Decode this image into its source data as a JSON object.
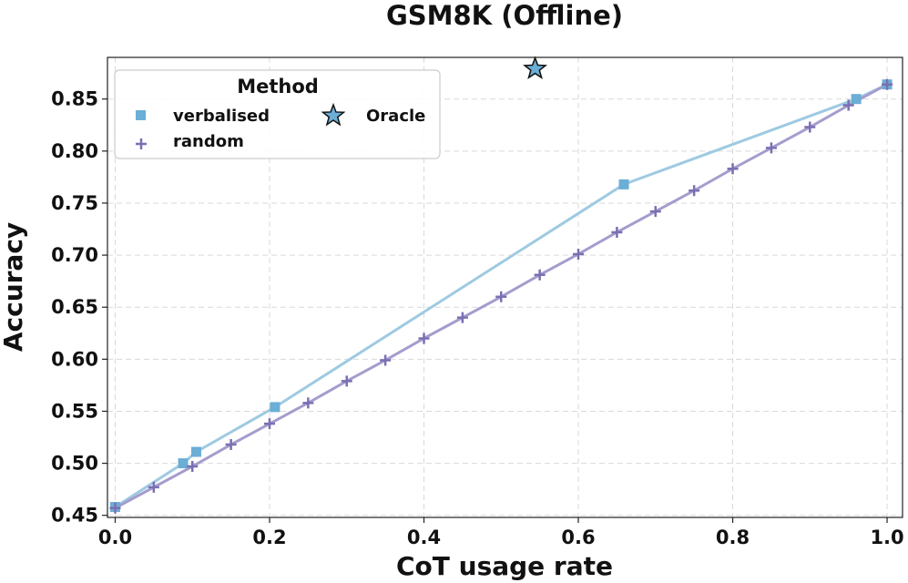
{
  "chart_data": {
    "type": "line",
    "title": "GSM8K (Offline)",
    "xlabel": "CoT usage rate",
    "ylabel": "Accuracy",
    "xlim": [
      -0.01,
      1.02
    ],
    "ylim": [
      0.448,
      0.89
    ],
    "xticks": [
      0.0,
      0.2,
      0.4,
      0.6,
      0.8,
      1.0
    ],
    "xtick_labels": [
      "0.0",
      "0.2",
      "0.4",
      "0.6",
      "0.8",
      "1.0"
    ],
    "yticks": [
      0.45,
      0.5,
      0.55,
      0.6,
      0.65,
      0.7,
      0.75,
      0.8,
      0.85
    ],
    "ytick_labels": [
      "0.45",
      "0.50",
      "0.55",
      "0.60",
      "0.65",
      "0.70",
      "0.75",
      "0.80",
      "0.85"
    ],
    "grid": true,
    "legend": {
      "title": "Method",
      "placement": "upper-left"
    },
    "series": [
      {
        "name": "verbalised",
        "marker": "square",
        "color": "#6baed6",
        "line_color": "#9ecae1",
        "points": [
          [
            0.0,
            0.458
          ],
          [
            0.088,
            0.5
          ],
          [
            0.105,
            0.511
          ],
          [
            0.207,
            0.554
          ],
          [
            0.659,
            0.768
          ],
          [
            0.96,
            0.85
          ],
          [
            1.0,
            0.864
          ]
        ]
      },
      {
        "name": "random",
        "marker": "plus",
        "color": "#7b6fb3",
        "line_color": "#a59ccd",
        "points": [
          [
            0.0,
            0.457
          ],
          [
            0.05,
            0.477
          ],
          [
            0.1,
            0.497
          ],
          [
            0.15,
            0.518
          ],
          [
            0.2,
            0.538
          ],
          [
            0.25,
            0.558
          ],
          [
            0.3,
            0.579
          ],
          [
            0.35,
            0.599
          ],
          [
            0.4,
            0.62
          ],
          [
            0.45,
            0.64
          ],
          [
            0.5,
            0.66
          ],
          [
            0.55,
            0.681
          ],
          [
            0.6,
            0.701
          ],
          [
            0.65,
            0.722
          ],
          [
            0.7,
            0.742
          ],
          [
            0.75,
            0.762
          ],
          [
            0.8,
            0.783
          ],
          [
            0.85,
            0.803
          ],
          [
            0.9,
            0.823
          ],
          [
            0.95,
            0.844
          ],
          [
            1.0,
            0.864
          ]
        ]
      },
      {
        "name": "Oracle",
        "marker": "star",
        "color": "#6baed6",
        "points": [
          [
            0.544,
            0.879
          ]
        ]
      }
    ]
  }
}
